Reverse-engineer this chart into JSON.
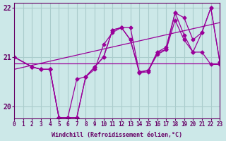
{
  "background_color": "#cce8e8",
  "grid_color": "#aacccc",
  "line_color": "#990099",
  "xlabel": "Windchill (Refroidissement éolien,°C)",
  "xlim": [
    0,
    23
  ],
  "ylim": [
    19.75,
    22.1
  ],
  "yticks": [
    20,
    21,
    22
  ],
  "xticks": [
    0,
    1,
    2,
    3,
    4,
    5,
    6,
    7,
    8,
    9,
    10,
    11,
    12,
    13,
    14,
    15,
    16,
    17,
    18,
    19,
    20,
    21,
    22,
    23
  ],
  "series": {
    "flatline": {
      "x": [
        0,
        23
      ],
      "y": [
        20.87,
        20.87
      ]
    },
    "trendline": {
      "x": [
        0,
        23
      ],
      "y": [
        20.75,
        21.7
      ]
    },
    "line2": {
      "x": [
        0,
        2,
        3,
        4,
        5,
        6,
        7,
        8,
        9,
        10,
        11,
        12,
        13,
        14,
        15,
        16,
        17,
        18,
        19,
        20,
        21,
        22,
        23
      ],
      "y": [
        21.0,
        20.8,
        20.75,
        20.75,
        19.77,
        19.77,
        19.77,
        20.6,
        20.75,
        21.25,
        21.5,
        21.6,
        21.35,
        20.7,
        20.73,
        21.05,
        21.15,
        21.75,
        21.35,
        21.1,
        21.1,
        20.85,
        20.85
      ]
    },
    "line3": {
      "x": [
        0,
        2,
        3,
        4,
        5,
        6,
        7,
        8,
        9,
        10,
        11,
        12,
        13,
        14,
        15,
        16,
        17,
        18,
        19,
        20,
        21,
        22,
        23
      ],
      "y": [
        21.0,
        20.8,
        20.75,
        20.75,
        19.77,
        19.77,
        19.77,
        20.6,
        20.8,
        21.0,
        21.55,
        21.6,
        21.35,
        20.68,
        20.7,
        21.1,
        21.15,
        21.9,
        21.45,
        21.1,
        21.5,
        22.0,
        20.9
      ]
    },
    "line4": {
      "x": [
        0,
        2,
        3,
        4,
        5,
        6,
        7,
        8,
        9,
        10,
        11,
        12,
        13,
        14,
        15,
        16,
        17,
        18,
        19,
        20,
        21,
        22,
        23
      ],
      "y": [
        21.0,
        20.8,
        20.75,
        20.75,
        19.77,
        19.77,
        20.55,
        20.6,
        20.8,
        21.0,
        21.55,
        21.6,
        21.6,
        20.68,
        20.73,
        21.1,
        21.2,
        21.9,
        21.8,
        21.35,
        21.5,
        22.0,
        20.9
      ]
    }
  }
}
